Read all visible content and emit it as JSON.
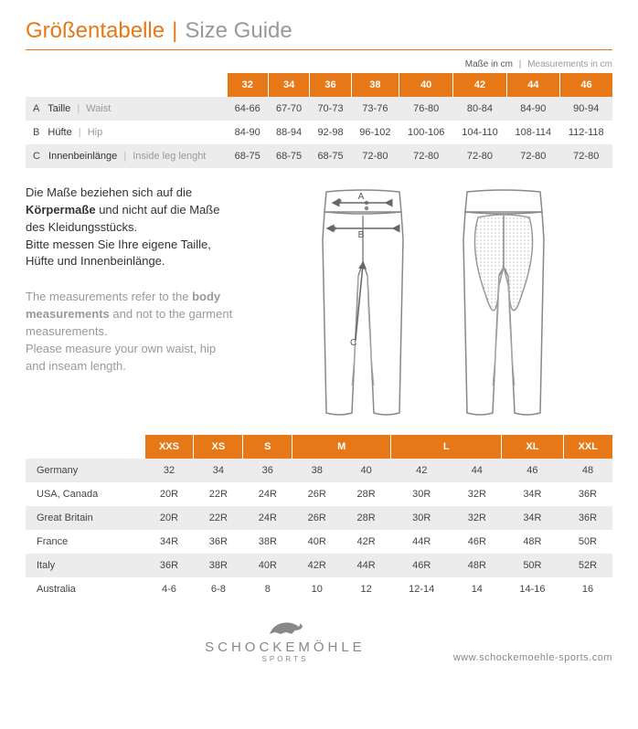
{
  "title": {
    "de": "Größentabelle",
    "sep": "|",
    "en": "Size Guide"
  },
  "units": {
    "de": "Maße in cm",
    "sep": "|",
    "en": "Measurements in cm"
  },
  "colors": {
    "accent": "#e67817",
    "muted": "#999999",
    "row_shade": "#ececec",
    "text": "#333333"
  },
  "size_table": {
    "sizes": [
      "32",
      "34",
      "36",
      "38",
      "40",
      "42",
      "44",
      "46"
    ],
    "rows": [
      {
        "letter": "A",
        "de": "Taille",
        "en": "Waist",
        "shade": true,
        "values": [
          "64-66",
          "67-70",
          "70-73",
          "73-76",
          "76-80",
          "80-84",
          "84-90",
          "90-94"
        ]
      },
      {
        "letter": "B",
        "de": "Hüfte",
        "en": "Hip",
        "shade": false,
        "values": [
          "84-90",
          "88-94",
          "92-98",
          "96-102",
          "100-106",
          "104-110",
          "108-114",
          "112-118"
        ]
      },
      {
        "letter": "C",
        "de": "Innenbeinlänge",
        "en": "Inside leg lenght",
        "shade": true,
        "values": [
          "68-75",
          "68-75",
          "68-75",
          "72-80",
          "72-80",
          "72-80",
          "72-80",
          "72-80"
        ]
      }
    ]
  },
  "description": {
    "de_pre": "Die Maße beziehen sich auf die ",
    "de_bold": "Körpermaße",
    "de_post": " und nicht auf die Maße des Kleidungsstücks.\nBitte messen Sie Ihre eigene Taille, Hüfte und Innenbeinlänge.",
    "en_pre": "The measurements refer to the ",
    "en_bold": "body measurements",
    "en_post": " and not to the garment measurements.\nPlease measure your own waist, hip and inseam length."
  },
  "diagram_labels": {
    "a": "A",
    "b": "B",
    "c": "C"
  },
  "country_table": {
    "size_headers": [
      "XXS",
      "XS",
      "S",
      "M",
      "M",
      "L",
      "L",
      "XL",
      "XXL"
    ],
    "header_spans": [
      1,
      1,
      1,
      2,
      2,
      1,
      1
    ],
    "header_labels": [
      "XXS",
      "XS",
      "S",
      "M",
      "L",
      "XL",
      "XXL"
    ],
    "rows": [
      {
        "country": "Germany",
        "shade": true,
        "values": [
          "32",
          "34",
          "36",
          "38",
          "40",
          "42",
          "44",
          "46",
          "48"
        ]
      },
      {
        "country": "USA, Canada",
        "shade": false,
        "values": [
          "20R",
          "22R",
          "24R",
          "26R",
          "28R",
          "30R",
          "32R",
          "34R",
          "36R"
        ]
      },
      {
        "country": "Great Britain",
        "shade": true,
        "values": [
          "20R",
          "22R",
          "24R",
          "26R",
          "28R",
          "30R",
          "32R",
          "34R",
          "36R"
        ]
      },
      {
        "country": "France",
        "shade": false,
        "values": [
          "34R",
          "36R",
          "38R",
          "40R",
          "42R",
          "44R",
          "46R",
          "48R",
          "50R"
        ]
      },
      {
        "country": "Italy",
        "shade": true,
        "values": [
          "36R",
          "38R",
          "40R",
          "42R",
          "44R",
          "46R",
          "48R",
          "50R",
          "52R"
        ]
      },
      {
        "country": "Australia",
        "shade": false,
        "values": [
          "4-6",
          "6-8",
          "8",
          "10",
          "12",
          "12-14",
          "14",
          "14-16",
          "16"
        ]
      }
    ]
  },
  "footer": {
    "brand": "SCHOCKEMÖHLE",
    "sub": "SPORTS",
    "url": "www.schockemoehle-sports.com"
  }
}
